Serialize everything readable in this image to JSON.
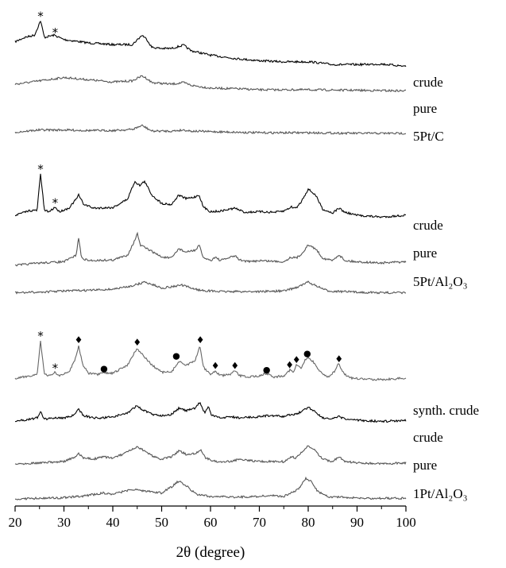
{
  "chart_data": {
    "type": "line",
    "title": "",
    "xlabel": "2θ (degree)",
    "ylabel": "",
    "xlim": [
      20,
      100
    ],
    "xticks": [
      "20",
      "30",
      "40",
      "50",
      "60",
      "70",
      "80",
      "90",
      "100"
    ],
    "y_ticks_shown": false,
    "grid": false,
    "groups": [
      {
        "name": "5Pt/C",
        "series": [
          {
            "name": "crude",
            "color": "#000000",
            "x": [
              20,
              22,
              24,
              25.2,
              26,
              28,
              30,
              35,
              40,
              44,
              46,
              47,
              48,
              50,
              52,
              54.5,
              56,
              60,
              65,
              70,
              75,
              80.5,
              85,
              90,
              95,
              100
            ],
            "y": [
              0.62,
              0.7,
              0.74,
              1.0,
              0.7,
              0.74,
              0.66,
              0.6,
              0.57,
              0.57,
              0.74,
              0.66,
              0.52,
              0.5,
              0.5,
              0.56,
              0.46,
              0.38,
              0.32,
              0.28,
              0.26,
              0.26,
              0.21,
              0.21,
              0.22,
              0.18
            ]
          },
          {
            "name": "pure",
            "color": "#555555",
            "x": [
              20,
              25,
              30,
              35,
              40,
              44,
              46,
              47,
              48,
              52,
              54.5,
              56,
              60,
              65,
              70,
              80,
              90,
              100
            ],
            "y": [
              0.3,
              0.36,
              0.42,
              0.38,
              0.34,
              0.36,
              0.45,
              0.4,
              0.33,
              0.3,
              0.33,
              0.28,
              0.23,
              0.22,
              0.2,
              0.2,
              0.19,
              0.18
            ]
          },
          {
            "name": "5Pt/C",
            "color": "#555555",
            "x": [
              20,
              25,
              30,
              35,
              40,
              44,
              46,
              47,
              48,
              52,
              54.5,
              56,
              60,
              70,
              80,
              90,
              100
            ],
            "y": [
              0.08,
              0.12,
              0.12,
              0.11,
              0.11,
              0.13,
              0.2,
              0.15,
              0.1,
              0.1,
              0.12,
              0.1,
              0.09,
              0.07,
              0.07,
              0.06,
              0.06
            ]
          }
        ],
        "markers": [
          {
            "symbol": "*",
            "x": 25.2,
            "y": 1.09
          },
          {
            "symbol": "*",
            "x": 28.2,
            "y": 0.8
          }
        ]
      },
      {
        "name": "5Pt/Al2O3",
        "series": [
          {
            "name": "crude",
            "color": "#000000",
            "x": [
              20,
              23,
              24.5,
              25.2,
              26,
              27,
              28.2,
              29,
              31,
              32.5,
              33,
              34,
              36,
              40,
              43,
              44.5,
              45.5,
              46.5,
              48,
              50,
              52,
              53.5,
              55,
              56.5,
              57.7,
              58.5,
              60,
              62,
              65,
              67,
              70,
              73,
              75,
              76.5,
              77.5,
              78.5,
              80,
              81.5,
              83,
              85,
              86.3,
              87.5,
              90,
              95,
              100
            ],
            "y": [
              0.28,
              0.36,
              0.36,
              0.98,
              0.36,
              0.34,
              0.42,
              0.34,
              0.4,
              0.55,
              0.62,
              0.47,
              0.4,
              0.41,
              0.55,
              0.85,
              0.78,
              0.85,
              0.62,
              0.48,
              0.46,
              0.62,
              0.56,
              0.58,
              0.62,
              0.42,
              0.34,
              0.35,
              0.4,
              0.33,
              0.34,
              0.33,
              0.35,
              0.42,
              0.4,
              0.5,
              0.72,
              0.62,
              0.38,
              0.32,
              0.4,
              0.33,
              0.28,
              0.25,
              0.28
            ]
          },
          {
            "name": "pure",
            "color": "#555555",
            "x": [
              20,
              25,
              30,
              32.5,
              33,
              33.6,
              35,
              40,
              43,
              44.5,
              45,
              45.6,
              47,
              50,
              52,
              53.5,
              55,
              57,
              57.7,
              58.4,
              60,
              61,
              62,
              65,
              66,
              68,
              70,
              75,
              76.5,
              77.5,
              78.5,
              80,
              81.5,
              83,
              85,
              86.3,
              87.5,
              90,
              95,
              100
            ],
            "y": [
              0.08,
              0.12,
              0.14,
              0.25,
              0.55,
              0.2,
              0.16,
              0.17,
              0.25,
              0.5,
              0.62,
              0.42,
              0.36,
              0.22,
              0.2,
              0.36,
              0.3,
              0.34,
              0.42,
              0.22,
              0.16,
              0.22,
              0.16,
              0.24,
              0.17,
              0.14,
              0.16,
              0.14,
              0.22,
              0.2,
              0.26,
              0.42,
              0.36,
              0.2,
              0.16,
              0.26,
              0.16,
              0.14,
              0.12,
              0.14
            ]
          },
          {
            "name": "5Pt/Al2O3",
            "color": "#555555",
            "x": [
              20,
              25,
              30,
              35,
              40,
              43,
              45,
              46.5,
              48,
              50,
              52,
              54,
              56,
              58,
              62,
              65,
              70,
              75,
              78,
              80,
              82,
              84,
              90,
              95,
              100
            ],
            "y": [
              0.02,
              0.03,
              0.05,
              0.06,
              0.08,
              0.12,
              0.16,
              0.2,
              0.16,
              0.1,
              0.12,
              0.15,
              0.1,
              0.06,
              0.04,
              0.04,
              0.04,
              0.05,
              0.12,
              0.2,
              0.12,
              0.05,
              0.03,
              0.02,
              0.02
            ]
          }
        ],
        "markers": [
          {
            "symbol": "*",
            "x": 25.2,
            "y": 1.07
          },
          {
            "symbol": "*",
            "x": 28.2,
            "y": 0.5
          }
        ]
      },
      {
        "name": "1Pt/Al2O3",
        "series": [
          {
            "name": "synth. crude",
            "color": "#666666",
            "x": [
              20,
              23,
              24.5,
              25.2,
              26,
              27,
              28.2,
              29,
              31,
              32.3,
              33,
              33.8,
              35,
              37,
              38.3,
              40,
              43,
              44.5,
              45,
              46,
              48,
              50,
              52,
              53.5,
              55,
              56.8,
              57.8,
              58.6,
              60,
              61,
              62,
              64,
              65,
              66,
              68,
              70,
              71.5,
              73,
              75,
              76.3,
              77,
              77.6,
              78.5,
              79.5,
              80,
              81,
              82.5,
              84,
              85.3,
              86.2,
              87.5,
              89,
              92,
              96,
              100
            ],
            "y": [
              0.55,
              0.6,
              0.62,
              1.18,
              0.62,
              0.6,
              0.66,
              0.6,
              0.66,
              0.88,
              1.1,
              0.8,
              0.64,
              0.62,
              0.65,
              0.64,
              0.78,
              1.0,
              1.06,
              0.96,
              0.78,
              0.66,
              0.66,
              0.84,
              0.78,
              0.84,
              1.1,
              0.74,
              0.62,
              0.68,
              0.6,
              0.62,
              0.68,
              0.6,
              0.58,
              0.6,
              0.64,
              0.58,
              0.6,
              0.7,
              0.66,
              0.78,
              0.72,
              0.88,
              0.9,
              0.84,
              0.66,
              0.58,
              0.66,
              0.8,
              0.62,
              0.56,
              0.54,
              0.54,
              0.56
            ]
          },
          {
            "name": "crude",
            "color": "#000000",
            "x": [
              20,
              23,
              24.5,
              25.2,
              26,
              27,
              28,
              30,
              32,
              33,
              34,
              36,
              38,
              40,
              43,
              44.5,
              45,
              46,
              48,
              50,
              52,
              53.5,
              55,
              56.8,
              57.8,
              58.8,
              59.6,
              60.2,
              62,
              64,
              66,
              70,
              72,
              75,
              76.5,
              77.5,
              78.5,
              80,
              81.5,
              83,
              85,
              86.3,
              87.5,
              90,
              95,
              100
            ],
            "y": [
              0.3,
              0.34,
              0.36,
              0.46,
              0.34,
              0.35,
              0.36,
              0.36,
              0.4,
              0.5,
              0.4,
              0.36,
              0.36,
              0.38,
              0.44,
              0.54,
              0.56,
              0.5,
              0.42,
              0.4,
              0.42,
              0.52,
              0.48,
              0.52,
              0.62,
              0.44,
              0.56,
              0.4,
              0.36,
              0.38,
              0.36,
              0.38,
              0.4,
              0.38,
              0.42,
              0.42,
              0.46,
              0.54,
              0.46,
              0.36,
              0.34,
              0.38,
              0.34,
              0.32,
              0.3,
              0.32
            ]
          },
          {
            "name": "pure",
            "color": "#555555",
            "x": [
              20,
              25,
              30,
              32.5,
              33,
              34,
              36,
              38,
              40,
              42,
              44,
              45,
              46,
              48,
              50,
              52,
              53.5,
              55,
              57,
              58,
              59,
              61,
              64,
              66,
              70,
              73,
              75,
              76.5,
              77.5,
              78.5,
              80,
              81.5,
              83,
              85,
              86.3,
              87.5,
              90,
              95,
              100
            ],
            "y": [
              0.12,
              0.14,
              0.16,
              0.24,
              0.3,
              0.22,
              0.2,
              0.24,
              0.22,
              0.28,
              0.36,
              0.4,
              0.36,
              0.26,
              0.2,
              0.24,
              0.34,
              0.28,
              0.3,
              0.36,
              0.22,
              0.16,
              0.16,
              0.2,
              0.16,
              0.16,
              0.16,
              0.24,
              0.22,
              0.3,
              0.42,
              0.34,
              0.2,
              0.16,
              0.24,
              0.16,
              0.14,
              0.12,
              0.14
            ]
          },
          {
            "name": "1Pt/Al2O3",
            "color": "#555555",
            "x": [
              20,
              25,
              30,
              33,
              35,
              38,
              40,
              42,
              44,
              46,
              48,
              50,
              52,
              53.5,
              55,
              57,
              60,
              65,
              70,
              72,
              75,
              78,
              79.5,
              80.5,
              82,
              84,
              88,
              92,
              100
            ],
            "y": [
              0.0,
              0.01,
              0.02,
              0.04,
              0.06,
              0.1,
              0.08,
              0.12,
              0.16,
              0.14,
              0.12,
              0.1,
              0.2,
              0.3,
              0.22,
              0.08,
              0.04,
              0.03,
              0.04,
              0.06,
              0.04,
              0.16,
              0.34,
              0.3,
              0.12,
              0.04,
              0.02,
              0.01,
              0.01
            ]
          }
        ],
        "markers": [
          {
            "symbol": "*",
            "x": 25.2,
            "y": 1.28
          },
          {
            "symbol": "*",
            "x": 28.2,
            "y": 0.74
          },
          {
            "symbol": "♦",
            "x": 33.0,
            "y": 1.2
          },
          {
            "symbol": "●",
            "x": 38.2,
            "y": 0.73
          },
          {
            "symbol": "♦",
            "x": 45.0,
            "y": 1.16
          },
          {
            "symbol": "●",
            "x": 53.0,
            "y": 0.94
          },
          {
            "symbol": "♦",
            "x": 57.9,
            "y": 1.2
          },
          {
            "symbol": "♦",
            "x": 61.0,
            "y": 0.77
          },
          {
            "symbol": "♦",
            "x": 65.0,
            "y": 0.77
          },
          {
            "symbol": "●",
            "x": 71.5,
            "y": 0.71
          },
          {
            "symbol": "♦",
            "x": 76.2,
            "y": 0.78
          },
          {
            "symbol": "♦",
            "x": 77.6,
            "y": 0.87
          },
          {
            "symbol": "●",
            "x": 79.8,
            "y": 0.98
          },
          {
            "symbol": "♦",
            "x": 86.3,
            "y": 0.88
          }
        ]
      }
    ],
    "series_labels": [
      "crude",
      "pure",
      "5Pt/C",
      "crude",
      "pure",
      "5Pt/Al₂O₃",
      "synth. crude",
      "crude",
      "pure",
      "1Pt/Al₂O₃"
    ]
  }
}
